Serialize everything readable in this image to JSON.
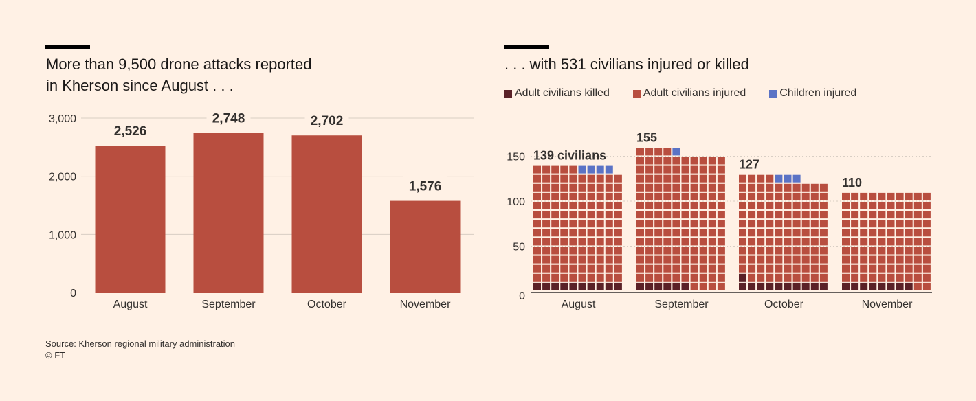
{
  "colors": {
    "background": "#FFF1E5",
    "bar": "#B84E3F",
    "adult_killed": "#5A2127",
    "adult_injured": "#B84E3F",
    "children_injured": "#5B73C5",
    "grid": "#D8CEC4",
    "axis": "#66605C",
    "text": "#33302E"
  },
  "left": {
    "title_line1": "More than 9,500 drone attacks reported",
    "title_line2": "in Kherson since August . . ."
  },
  "right": {
    "title": ". . . with 531 civilians injured or killed"
  },
  "footer": {
    "source": "Source: Kherson regional military administration",
    "credit": "© FT"
  },
  "chart_data": [
    {
      "type": "bar",
      "title": "More than 9,500 drone attacks reported in Kherson since August . . .",
      "categories": [
        "August",
        "September",
        "October",
        "November"
      ],
      "values": [
        2526,
        2748,
        2702,
        1576
      ],
      "value_labels": [
        "2,526",
        "2,748",
        "2,702",
        "1,576"
      ],
      "yticks": [
        0,
        1000,
        2000,
        3000
      ],
      "ytick_labels": [
        "0",
        "1,000",
        "2,000",
        "3,000"
      ],
      "ylim": [
        0,
        3000
      ],
      "xlabel": "",
      "ylabel": "",
      "grid": true
    },
    {
      "type": "waffle",
      "title": ". . . with 531 civilians injured or killed",
      "categories": [
        "August",
        "September",
        "October",
        "November"
      ],
      "units_per_row": 10,
      "series": [
        {
          "name": "Adult civilians killed",
          "values": [
            10,
            6,
            11,
            8
          ]
        },
        {
          "name": "Adult civilians injured",
          "values": [
            125,
            148,
            113,
            102
          ]
        },
        {
          "name": "Children injured",
          "values": [
            4,
            1,
            3,
            0
          ]
        }
      ],
      "totals": [
        139,
        155,
        127,
        110
      ],
      "total_labels": [
        "139 civilians",
        "155",
        "127",
        "110"
      ],
      "yticks": [
        0,
        50,
        100,
        150
      ],
      "ytick_labels": [
        "0",
        "50",
        "100",
        "150"
      ],
      "ylim": [
        0,
        155
      ],
      "legend": [
        "Adult civilians killed",
        "Adult civilians injured",
        "Children injured"
      ],
      "legend_position": "top-left",
      "grid": true
    }
  ]
}
